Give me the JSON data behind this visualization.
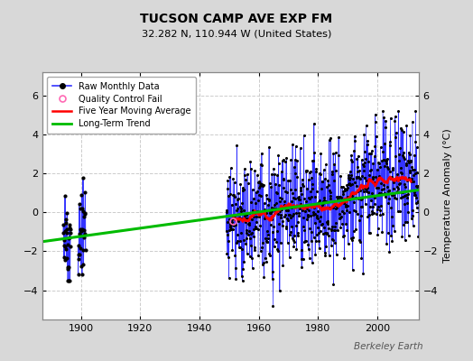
{
  "title": "TUCSON CAMP AVE EXP FM",
  "subtitle": "32.282 N, 110.944 W (United States)",
  "ylabel": "Temperature Anomaly (°C)",
  "watermark": "Berkeley Earth",
  "xlim": [
    1887,
    2014
  ],
  "ylim": [
    -5.5,
    7.2
  ],
  "yticks": [
    -4,
    -2,
    0,
    2,
    4,
    6
  ],
  "xticks": [
    1900,
    1920,
    1940,
    1960,
    1980,
    2000
  ],
  "bg_color": "#d8d8d8",
  "plot_bg_color": "#ffffff",
  "grid_color": "#cccccc",
  "raw_line_color": "#3333ff",
  "raw_dot_color": "#000000",
  "qc_fail_color": "#ff69b4",
  "moving_avg_color": "#ff0000",
  "trend_color": "#00bb00",
  "seed": 42,
  "trend_x0": 1887,
  "trend_x1": 2014,
  "trend_y0": -1.5,
  "trend_y1": 1.15,
  "legend_labels": [
    "Raw Monthly Data",
    "Quality Control Fail",
    "Five Year Moving Average",
    "Long-Term Trend"
  ]
}
